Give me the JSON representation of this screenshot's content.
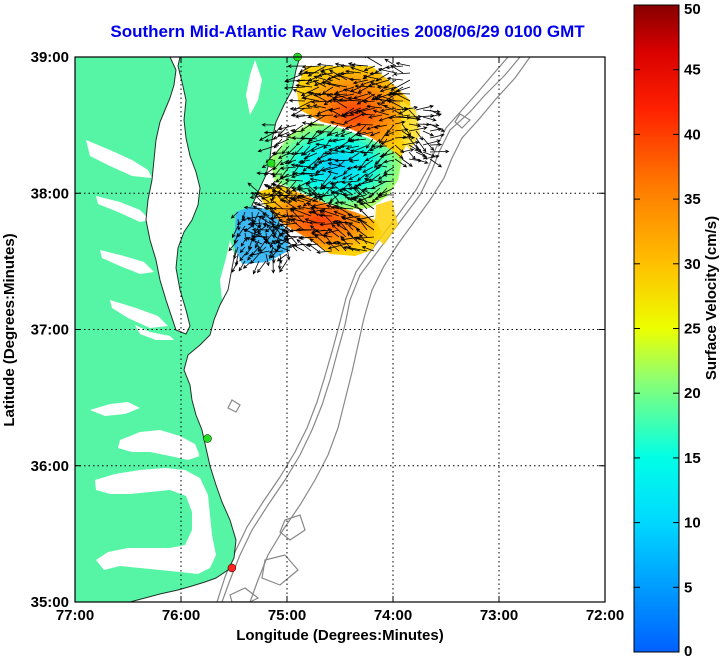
{
  "title": "Southern Mid-Atlantic Raw Velocities 2008/06/29 0100 GMT",
  "x_axis": {
    "label": "Longitude (Degrees:Minutes)",
    "ticks": [
      "77:00",
      "76:00",
      "75:00",
      "74:00",
      "73:00",
      "72:00"
    ]
  },
  "y_axis": {
    "label": "Latitude (Degrees:Minutes)",
    "ticks": [
      "39:00",
      "38:00",
      "37:00",
      "36:00",
      "35:00"
    ]
  },
  "colorbar": {
    "label": "Surface Velocity (cm/s)",
    "min": 0,
    "max": 50,
    "ticks": [
      "50",
      "45",
      "40",
      "35",
      "30",
      "25",
      "20",
      "15",
      "10",
      "5",
      "0"
    ]
  },
  "colors": {
    "land": "#55f5a5",
    "ocean": "#ffffff",
    "isobath": "#888888",
    "title": "#0000ee",
    "station_green": "#22dd22",
    "station_red": "#ff2222"
  },
  "map": {
    "lon_range": [
      -77,
      -72
    ],
    "lat_range": [
      35,
      39
    ],
    "grid": "dotted",
    "stations": [
      {
        "lon": -74.9,
        "lat": 39.0,
        "status": "green"
      },
      {
        "lon": -75.15,
        "lat": 38.22,
        "status": "green"
      },
      {
        "lon": -75.75,
        "lat": 36.2,
        "status": "green"
      },
      {
        "lon": -75.52,
        "lat": 35.25,
        "status": "red"
      }
    ]
  }
}
